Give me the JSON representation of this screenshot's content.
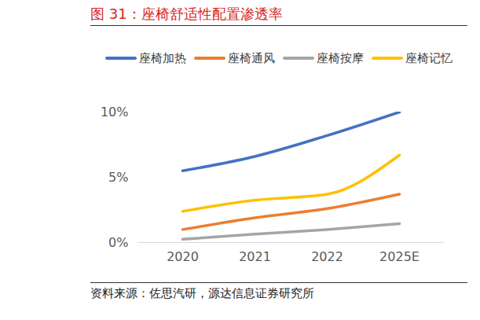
{
  "chart_data": {
    "type": "line",
    "title": "图 31：座椅舒适性配置渗透率",
    "source": "资料来源：佐思汽研，源达信息证券研究所",
    "categories": [
      "2020",
      "2021",
      "2022",
      "2025E"
    ],
    "series": [
      {
        "name": "座椅加热",
        "color": "#4472c4",
        "values": [
          5.5,
          6.6,
          8.2,
          10.0
        ]
      },
      {
        "name": "座椅通风",
        "color": "#ed7d31",
        "values": [
          1.0,
          1.9,
          2.6,
          3.7
        ]
      },
      {
        "name": "座椅按摩",
        "color": "#a5a5a5",
        "values": [
          0.25,
          0.65,
          1.0,
          1.45
        ]
      },
      {
        "name": "座椅记忆",
        "color": "#ffc000",
        "values": [
          2.4,
          3.25,
          3.7,
          6.7
        ]
      }
    ],
    "ylim": [
      0,
      10
    ],
    "yticks": [
      {
        "value": 0,
        "label": "0%"
      },
      {
        "value": 5,
        "label": "5%"
      },
      {
        "value": 10,
        "label": "10%"
      }
    ],
    "grid": false,
    "legend": "top"
  }
}
